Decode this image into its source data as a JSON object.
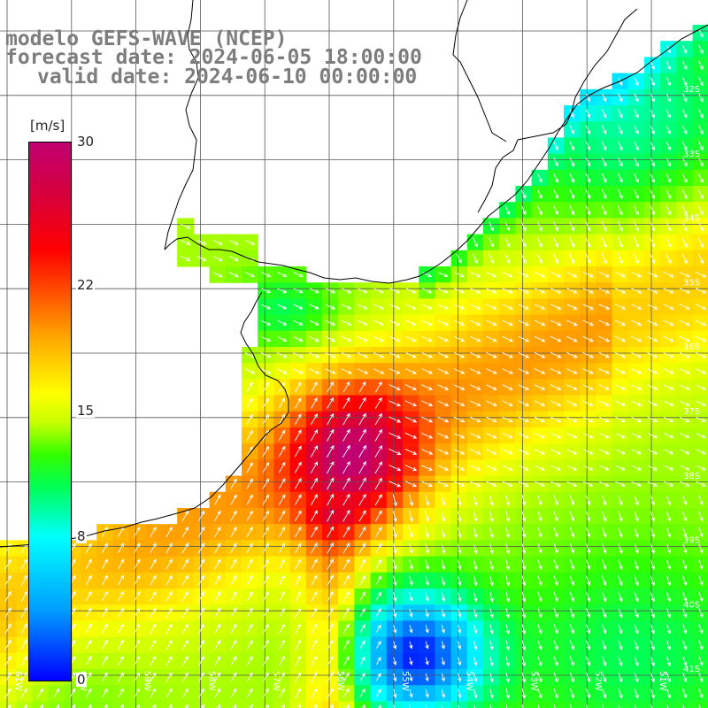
{
  "title": {
    "model": "modelo GEFS-WAVE (NCEP)",
    "forecast": "forecast date: 2024-06-05 18:00:00",
    "valid": "valid date: 2024-06-10 00:00:00"
  },
  "colorbar": {
    "units": "[m/s]",
    "min": 0,
    "max": 30,
    "ticks": [
      {
        "label": "30",
        "value": 30
      },
      {
        "label": "22",
        "value": 22
      },
      {
        "label": "15",
        "value": 15
      },
      {
        "label": "8",
        "value": 8
      },
      {
        "label": "0",
        "value": 0
      }
    ],
    "colors": [
      "#0000ff",
      "#00ffff",
      "#33ff00",
      "#ffff00",
      "#ff0000",
      "#c00070"
    ]
  },
  "lat_labels": [
    "32S",
    "33S",
    "34S",
    "35S",
    "36S",
    "37S",
    "38S",
    "39S",
    "40S",
    "41S"
  ],
  "lon_labels": [
    "61W",
    "60W",
    "59W",
    "58W",
    "57W",
    "56W",
    "55W",
    "54W",
    "53W",
    "52W",
    "51W"
  ],
  "colors": {
    "land": "#ffffff",
    "grid": "#555555",
    "coast": "#000000",
    "arrows": "#ffffff",
    "title": "#7d7d7d"
  }
}
